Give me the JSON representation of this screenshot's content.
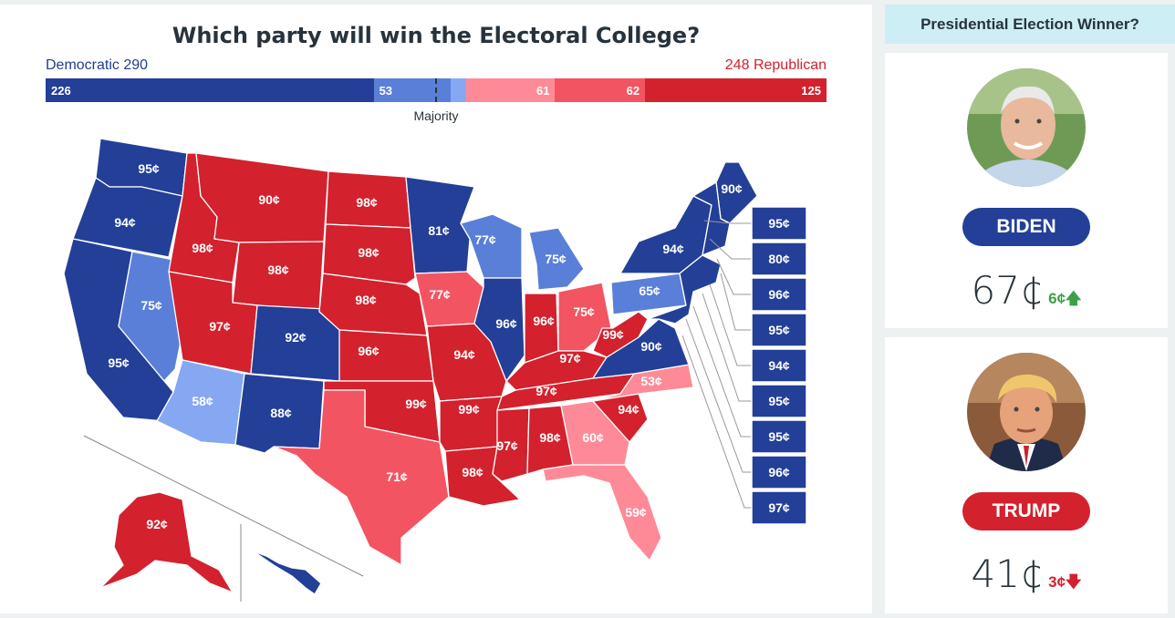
{
  "title": "Which party will win the Electoral College?",
  "democratic_label": "Democratic 290",
  "republican_label": "248 Republican",
  "majority_label": "Majority",
  "colors": {
    "dem_safe": "#233f97",
    "dem_likely": "#5a7fd8",
    "dem_lean": "#86a8f3",
    "rep_lean": "#fe8a98",
    "rep_likely": "#f35462",
    "rep_safe": "#d3212e"
  },
  "electoral_bar": [
    {
      "value": 226,
      "label": "226",
      "color": "#233f97"
    },
    {
      "value": 53,
      "label": "53",
      "color": "#5a7fd8"
    },
    {
      "value": 11,
      "label": "",
      "color": "#86a8f3"
    },
    {
      "value": 61,
      "label": "61",
      "color": "#fe8a98"
    },
    {
      "value": 62,
      "label": "62",
      "color": "#f35462"
    },
    {
      "value": 125,
      "label": "125",
      "color": "#d3212e"
    }
  ],
  "states": {
    "WA": "95¢",
    "OR": "94¢",
    "CA": "95¢",
    "NV": "75¢",
    "ID": "98¢",
    "MT": "90¢",
    "WY": "98¢",
    "UT": "97¢",
    "AZ": "58¢",
    "CO": "92¢",
    "NM": "88¢",
    "ND": "98¢",
    "SD": "98¢",
    "NE": "98¢",
    "KS": "96¢",
    "OK": "99¢",
    "TX": "71¢",
    "MN": "81¢",
    "IA": "77¢",
    "MO": "94¢",
    "AR": "99¢",
    "LA": "98¢",
    "WI": "77¢",
    "IL": "96¢",
    "MI": "75¢",
    "IN": "96¢",
    "OH": "75¢",
    "KY": "97¢",
    "TN": "97¢",
    "MS": "97¢",
    "AL": "98¢",
    "GA": "60¢",
    "FL": "59¢",
    "SC": "94¢",
    "NC": "53¢",
    "VA": "90¢",
    "WV": "99¢",
    "PA": "65¢",
    "NY": "94¢",
    "ME": "90¢",
    "AK": "92¢"
  },
  "small_states": [
    "95¢",
    "80¢",
    "96¢",
    "95¢",
    "94¢",
    "95¢",
    "95¢",
    "96¢",
    "97¢"
  ],
  "sidebar": {
    "header": "Presidential Election Winner?",
    "candidates": [
      {
        "name": "BIDEN",
        "price": "67¢",
        "change": "6¢",
        "direction": "up",
        "color": "#233f97",
        "change_color": "#3aa14a"
      },
      {
        "name": "TRUMP",
        "price": "41¢",
        "change": "3¢",
        "direction": "down",
        "color": "#d3212e",
        "change_color": "#d3212e"
      }
    ]
  }
}
